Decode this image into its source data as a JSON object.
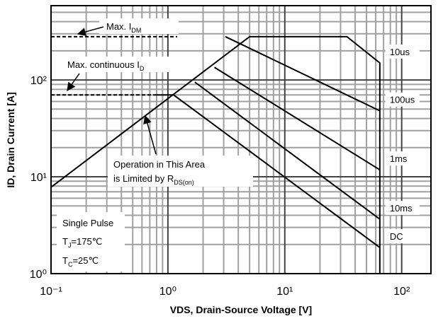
{
  "chart_data": {
    "type": "line",
    "xlabel": "VDS, Drain-Source Voltage [V]",
    "ylabel": "ID, Drain Current [A]",
    "xscale": "log",
    "yscale": "log",
    "xlim": [
      0.1,
      178
    ],
    "ylim": [
      1,
      585
    ],
    "xticks": [
      {
        "value": 0.1,
        "label": "10⁻¹"
      },
      {
        "value": 1,
        "label": "10⁰"
      },
      {
        "value": 10,
        "label": "10¹"
      },
      {
        "value": 100,
        "label": "10²"
      }
    ],
    "yticks": [
      {
        "value": 1,
        "label": "10⁰"
      },
      {
        "value": 10,
        "label": "10¹"
      },
      {
        "value": 100,
        "label": "10²"
      }
    ],
    "grid": true,
    "minor_grid": true,
    "series": [
      {
        "name": "10us",
        "color": "#000000",
        "x": [
          0.1,
          5,
          34,
          65,
          65
        ],
        "values": [
          7.8,
          280,
          280,
          150,
          1
        ]
      },
      {
        "name": "100us",
        "color": "#000000",
        "x": [
          3.1,
          65
        ],
        "values": [
          280,
          48
        ]
      },
      {
        "name": "1ms",
        "color": "#000000",
        "x": [
          2.5,
          65
        ],
        "values": [
          135,
          11.8
        ]
      },
      {
        "name": "10ms",
        "color": "#000000",
        "x": [
          1.7,
          65
        ],
        "values": [
          95,
          3.65
        ]
      },
      {
        "name": "DC",
        "color": "#000000",
        "x": [
          0.77,
          1.12,
          65
        ],
        "values": [
          70,
          70,
          1.86
        ]
      }
    ],
    "reference_lines": [
      {
        "x": [
          0.1,
          1.2
        ],
        "values": [
          280,
          280
        ]
      },
      {
        "x": [
          0.1,
          0.77
        ],
        "values": [
          70,
          70
        ]
      }
    ],
    "annotations": [
      {
        "text": "Max. I",
        "sub": "DM"
      },
      {
        "text": "Max. continuous I",
        "sub": "D"
      },
      {
        "text": "Operation in This Area"
      },
      {
        "text": "is Limited by R",
        "sub": "DS(on)"
      },
      {
        "text": "Single Pulse"
      },
      {
        "text": "T",
        "sub": "J",
        "tail": "=175℃"
      },
      {
        "text": "T",
        "sub": "C",
        "tail": "=25℃"
      }
    ]
  }
}
